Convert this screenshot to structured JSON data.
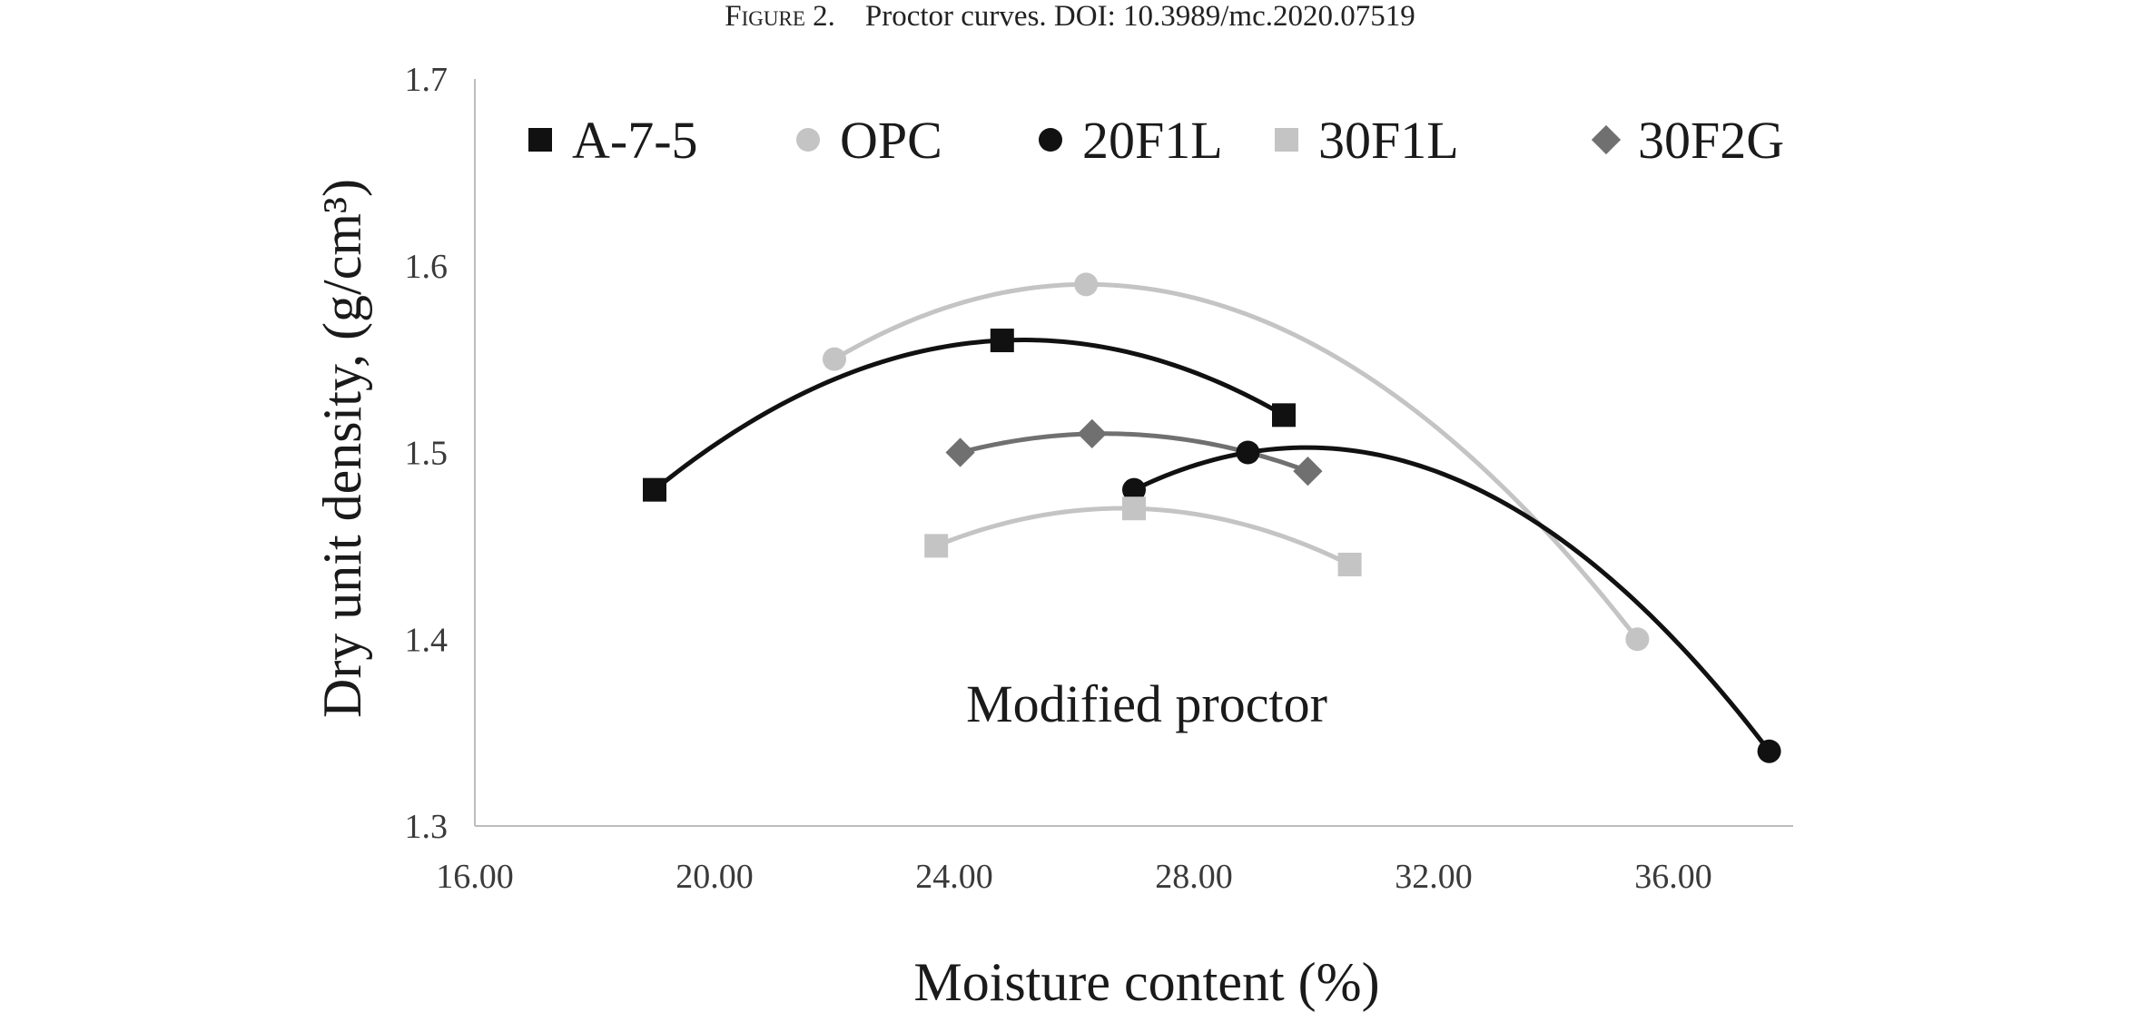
{
  "figure": {
    "caption_label": "Figure 2.",
    "caption_text": "Proctor curves. DOI: 10.3989/mc.2020.07519"
  },
  "chart_data": {
    "type": "scatter",
    "title": "",
    "xlabel": "Moisture content (%)",
    "ylabel": "Dry unit density, (g/cm³)",
    "xlim": [
      16,
      38
    ],
    "ylim": [
      1.3,
      1.7
    ],
    "x_ticks": [
      "16.00",
      "20.00",
      "24.00",
      "28.00",
      "32.00",
      "36.00"
    ],
    "y_ticks": [
      "1.3",
      "1.4",
      "1.5",
      "1.6",
      "1.7"
    ],
    "grid": false,
    "legend_position": "top",
    "annotation": "Modified proctor",
    "series": [
      {
        "name": "A-7-5",
        "marker": "square",
        "color": "#111111",
        "line_color": "#111111",
        "points": [
          [
            19.0,
            1.48
          ],
          [
            24.8,
            1.56
          ],
          [
            29.5,
            1.52
          ]
        ]
      },
      {
        "name": "OPC",
        "marker": "circle",
        "color": "#c4c4c4",
        "line_color": "#c4c4c4",
        "points": [
          [
            22.0,
            1.55
          ],
          [
            26.2,
            1.59
          ],
          [
            35.4,
            1.4
          ]
        ]
      },
      {
        "name": "20F1L",
        "marker": "circle",
        "color": "#111111",
        "line_color": "#111111",
        "points": [
          [
            27.0,
            1.48
          ],
          [
            28.9,
            1.5
          ],
          [
            37.6,
            1.34
          ]
        ]
      },
      {
        "name": "30F1L",
        "marker": "square",
        "color": "#c4c4c4",
        "line_color": "#c4c4c4",
        "points": [
          [
            23.7,
            1.45
          ],
          [
            27.0,
            1.47
          ],
          [
            30.6,
            1.44
          ]
        ]
      },
      {
        "name": "30F2G",
        "marker": "diamond",
        "color": "#707070",
        "line_color": "#707070",
        "points": [
          [
            24.1,
            1.5
          ],
          [
            26.3,
            1.51
          ],
          [
            29.9,
            1.49
          ]
        ]
      }
    ]
  }
}
